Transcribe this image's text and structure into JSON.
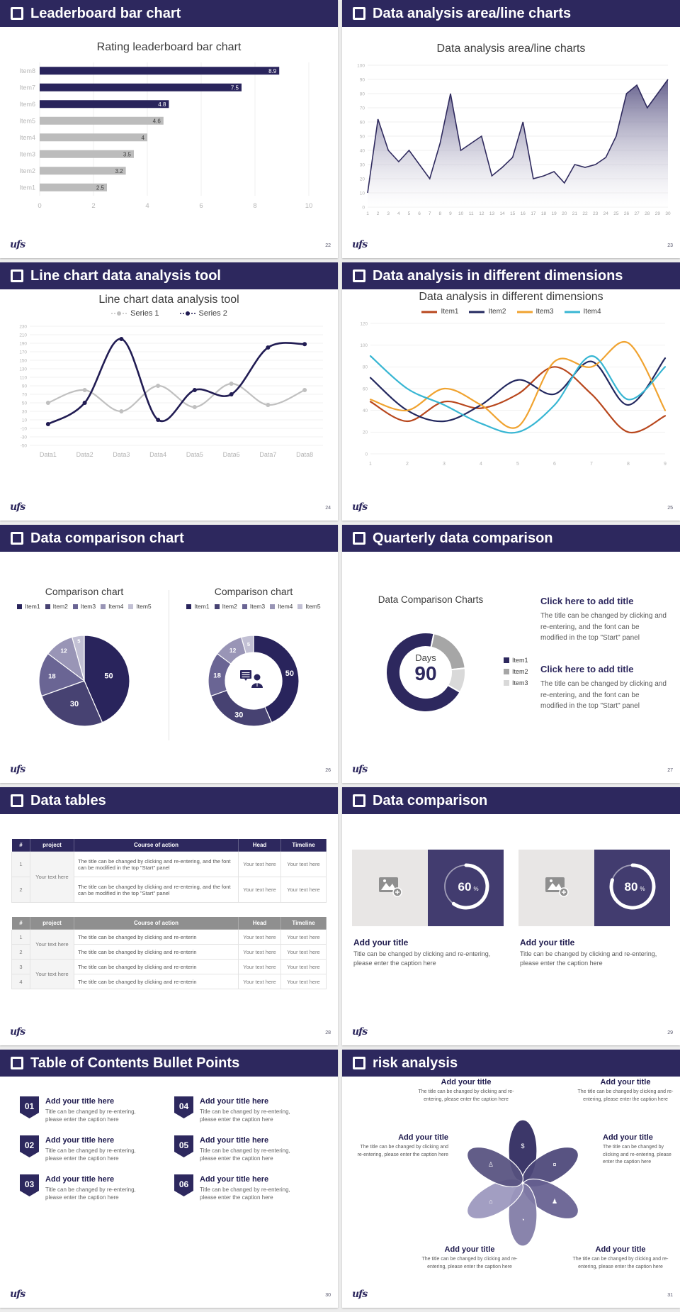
{
  "page": {
    "bg": "#ececec"
  },
  "footer_logo": "ufs",
  "colors": {
    "navy": "#2d285e",
    "bar_gray": "#bcbcbc",
    "grid": "#efefef",
    "tick": "#b5b5b5",
    "body_text": "#595959",
    "card_navy": "#423c6f"
  },
  "slides": [
    {
      "header": "Leaderboard bar chart",
      "page_no": "22"
    },
    {
      "header": "Data analysis area/line charts",
      "page_no": "23"
    },
    {
      "header": "Line chart data analysis tool",
      "page_no": "24"
    },
    {
      "header": "Data analysis in different dimensions",
      "page_no": "25"
    },
    {
      "header": "Data comparison chart",
      "page_no": "26",
      "panel_titles": [
        "Comparison chart",
        "Comparison chart"
      ]
    },
    {
      "header": "Quarterly data comparison",
      "page_no": "27",
      "blocks": [
        {
          "title": "Click here to add title",
          "body": "The title can be changed by clicking and re-entering, and the font can be modified in the top \"Start\" panel"
        },
        {
          "title": "Click here to add title",
          "body": "The title can be changed by clicking and re-entering, and the font can be modified in the top \"Start\" panel"
        }
      ]
    },
    {
      "header": "Data tables",
      "page_no": "28",
      "table1": {
        "headers": [
          "#",
          "project",
          "Course of action",
          "Head",
          "Timeline"
        ],
        "rows": [
          [
            "1",
            "Your text here",
            "The title can be changed by clicking and re-entering, and the font can be modified in the top \"Start\" panel",
            "Your text here",
            "Your text here"
          ],
          [
            "2",
            "",
            "The title can be changed by clicking and re-entering, and the font can be modified in the top \"Start\" panel",
            "Your text here",
            "Your text here"
          ]
        ]
      },
      "table2": {
        "headers": [
          "#",
          "project",
          "Course of action",
          "Head",
          "Timeline"
        ],
        "rows": [
          [
            "1",
            "Your text here",
            "The title can be changed by clicking and re-enterin",
            "Your text here",
            "Your text here"
          ],
          [
            "2",
            "",
            "The title can be changed by clicking and re-enterin",
            "Your text here",
            "Your text here"
          ],
          [
            "3",
            "Your text here",
            "The title can be changed by clicking and re-enterin",
            "Your text here",
            "Your text here"
          ],
          [
            "4",
            "",
            "The title can be changed by clicking and re-enterin",
            "Your text here",
            "Your text here"
          ]
        ]
      }
    },
    {
      "header": "Data comparison",
      "page_no": "29",
      "cards": [
        {
          "percent": "60",
          "unit": "%",
          "title": "Add your title",
          "caption": "Title can be changed by clicking and re-entering, please enter the caption here",
          "placeholder_icon": "add-image-icon"
        },
        {
          "percent": "80",
          "unit": "%",
          "title": "Add your title",
          "caption": "Title can be changed by clicking and re-entering, please enter the caption here",
          "placeholder_icon": "add-image-icon"
        }
      ]
    },
    {
      "header": "Table of Contents Bullet Points",
      "page_no": "30",
      "items": [
        {
          "num": "01",
          "title": "Add your title here",
          "caption": "Title can be changed by re-entering, please enter the caption here"
        },
        {
          "num": "02",
          "title": "Add your title here",
          "caption": "Title can be changed by re-entering, please enter the caption here"
        },
        {
          "num": "03",
          "title": "Add your title here",
          "caption": "Title can be changed by re-entering, please enter the caption here"
        },
        {
          "num": "04",
          "title": "Add your title here",
          "caption": "Title can be changed by re-entering, please enter the caption here"
        },
        {
          "num": "05",
          "title": "Add your title here",
          "caption": "Title can be changed by re-entering, please enter the caption here"
        },
        {
          "num": "06",
          "title": "Add your title here",
          "caption": "Title can be changed by re-entering, please enter the caption here"
        }
      ]
    },
    {
      "header": "risk analysis",
      "page_no": "31",
      "items": [
        {
          "icon": "money-bag-icon",
          "title": "Add your title",
          "caption": "The title can be changed by clicking and re-entering, please enter the caption here"
        },
        {
          "icon": "coins-icon",
          "title": "Add your title",
          "caption": "The title can be changed by clicking and re-entering, please enter the caption here"
        },
        {
          "icon": "people-icon",
          "title": "Add your title",
          "caption": "The title can be changed by clicking and re-entering, please enter the caption here"
        },
        {
          "icon": "pie-chart-icon",
          "title": "Add your title",
          "caption": "The title can be changed by clicking and re-entering, please enter the caption here"
        },
        {
          "icon": "building-icon",
          "title": "Add your title",
          "caption": "The title can be changed by clicking and re-entering, please enter the caption here"
        },
        {
          "icon": "person-icon",
          "title": "Add your title",
          "caption": "The title can be changed by clicking and re-entering, please enter the caption here"
        }
      ]
    }
  ],
  "chart_data": [
    {
      "type": "bar",
      "orientation": "horizontal",
      "title": "Rating leaderboard bar chart",
      "categories": [
        "Item1",
        "Item2",
        "Item3",
        "Item4",
        "Item5",
        "Item6",
        "Item7",
        "Item8"
      ],
      "values": [
        2.5,
        3.2,
        3.5,
        4,
        4.6,
        4.8,
        7.5,
        8.9
      ],
      "bar_colors": [
        "#bcbcbc",
        "#bcbcbc",
        "#bcbcbc",
        "#bcbcbc",
        "#bcbcbc",
        "#29245c",
        "#29245c",
        "#29245c"
      ],
      "label_colors": [
        "#3f3f3f",
        "#3f3f3f",
        "#3f3f3f",
        "#3f3f3f",
        "#3f3f3f",
        "#ffffff",
        "#ffffff",
        "#ffffff"
      ],
      "xlim": [
        0,
        10
      ],
      "xticks": [
        0,
        2,
        4,
        6,
        8,
        10
      ],
      "grid": true
    },
    {
      "type": "area",
      "title": "Data analysis area/line charts",
      "x": [
        1,
        2,
        3,
        4,
        5,
        6,
        7,
        8,
        9,
        10,
        11,
        12,
        13,
        14,
        15,
        16,
        17,
        18,
        19,
        20,
        21,
        22,
        23,
        24,
        25,
        26,
        27,
        28,
        29,
        30
      ],
      "values": [
        10,
        62,
        40,
        32,
        40,
        30,
        20,
        45,
        80,
        40,
        45,
        50,
        22,
        28,
        35,
        60,
        20,
        22,
        25,
        17,
        30,
        28,
        30,
        35,
        50,
        80,
        86,
        70,
        80,
        90
      ],
      "ylim": [
        0,
        100
      ],
      "ytick_step": 10,
      "line_color": "#2f2a5e",
      "fill_top": "#3e3870",
      "fill_bottom": "#ffffff",
      "grid": true
    },
    {
      "type": "line",
      "title": "Line chart data analysis tool",
      "categories": [
        "Data1",
        "Data2",
        "Data3",
        "Data4",
        "Data5",
        "Data6",
        "Data7",
        "Data8"
      ],
      "ylim": [
        -50,
        230
      ],
      "ytick_step": 20,
      "markers": true,
      "grid": true,
      "series": [
        {
          "name": "Series 1",
          "color": "#c0c0c0",
          "values": [
            50,
            80,
            30,
            90,
            40,
            95,
            45,
            80
          ]
        },
        {
          "name": "Series 2",
          "color": "#211c53",
          "values": [
            0,
            50,
            200,
            10,
            80,
            70,
            180,
            188
          ]
        }
      ]
    },
    {
      "type": "line",
      "title": "Data analysis in different dimensions",
      "categories": [
        "1",
        "2",
        "3",
        "4",
        "5",
        "6",
        "7",
        "8",
        "9"
      ],
      "ylim": [
        0,
        120
      ],
      "ytick_step": 20,
      "markers": false,
      "grid": true,
      "series": [
        {
          "name": "Item1",
          "color": "#b8471d",
          "values": [
            48,
            30,
            48,
            42,
            55,
            80,
            55,
            20,
            35
          ]
        },
        {
          "name": "Item2",
          "color": "#23285f",
          "values": [
            70,
            40,
            30,
            45,
            68,
            55,
            85,
            45,
            88
          ]
        },
        {
          "name": "Item3",
          "color": "#f0a330",
          "values": [
            50,
            40,
            60,
            45,
            25,
            85,
            80,
            102,
            40
          ]
        },
        {
          "name": "Item4",
          "color": "#38b6d3",
          "values": [
            90,
            60,
            45,
            28,
            20,
            45,
            90,
            50,
            80
          ]
        }
      ]
    },
    {
      "type": "pie",
      "title": "Comparison chart",
      "labels": [
        "Item1",
        "Item2",
        "Item3",
        "Item4",
        "Item5"
      ],
      "values": [
        50,
        30,
        18,
        12,
        5
      ],
      "colors": [
        "#29245c",
        "#474272",
        "#6a6594",
        "#9995b6",
        "#c2c0d4"
      ]
    },
    {
      "type": "donut",
      "title": "Comparison chart",
      "labels": [
        "Item1",
        "Item2",
        "Item3",
        "Item4",
        "Item5"
      ],
      "values": [
        50,
        30,
        18,
        12,
        5
      ],
      "colors": [
        "#29245c",
        "#474272",
        "#6a6594",
        "#9995b6",
        "#c2c0d4"
      ],
      "center_icon": "presenter-icon"
    },
    {
      "type": "donut",
      "title": "Data Comparison Charts",
      "labels": [
        "Item1",
        "Item2",
        "Item3"
      ],
      "values": [
        70,
        20,
        10
      ],
      "colors": [
        "#2d285e",
        "#a6a6a6",
        "#d9d9d9"
      ],
      "start_angle": 120,
      "center_label": "Days",
      "center_value": "90"
    },
    {
      "type": "progress-rings",
      "values": [
        60,
        80
      ],
      "unit": "%",
      "ring_color": "#ffffff"
    }
  ]
}
